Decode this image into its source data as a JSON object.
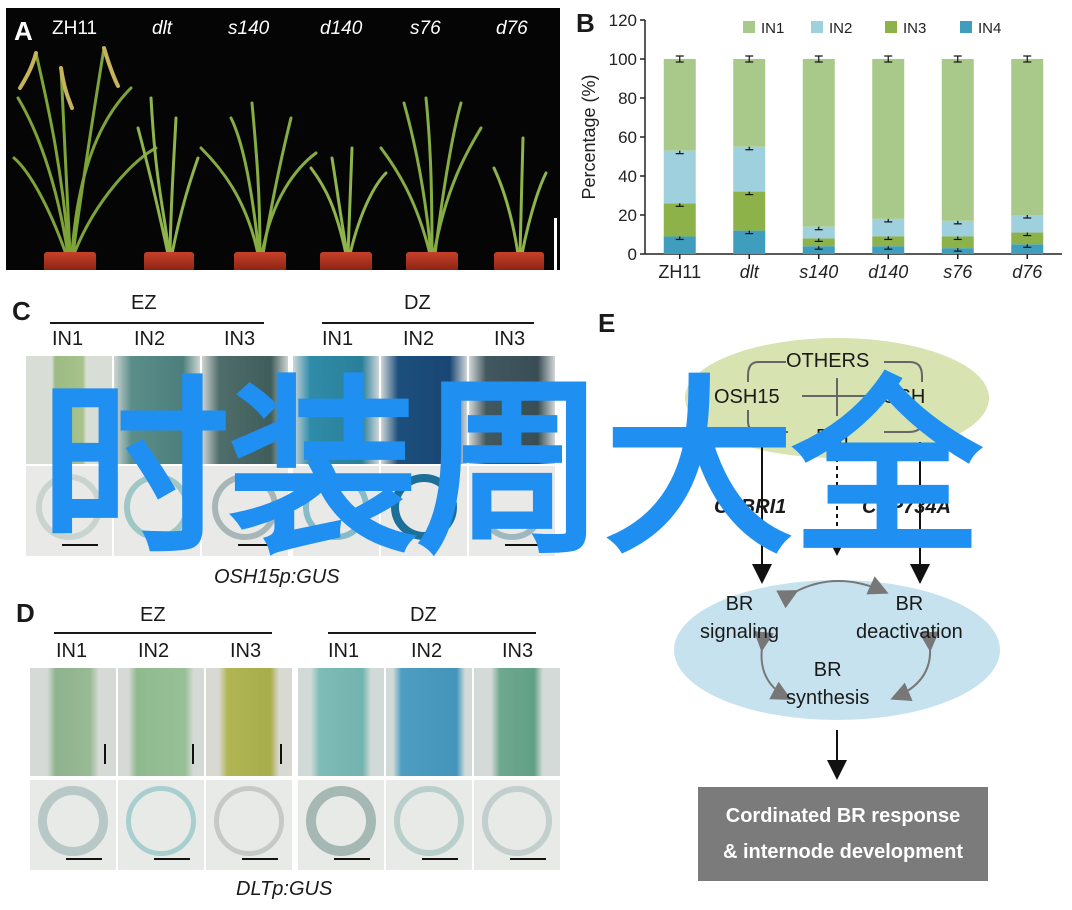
{
  "panels": {
    "a": {
      "letter": "A",
      "labels": [
        "ZH11",
        "dlt",
        "s140",
        "d140",
        "s76",
        "d76"
      ]
    },
    "b": {
      "letter": "B"
    },
    "c": {
      "letter": "C",
      "groups": [
        "EZ",
        "DZ"
      ],
      "columns": [
        "IN1",
        "IN2",
        "IN3",
        "IN1",
        "IN2",
        "IN3"
      ],
      "caption": "OSH15p:GUS"
    },
    "d": {
      "letter": "D",
      "groups": [
        "EZ",
        "DZ"
      ],
      "columns": [
        "IN1",
        "IN2",
        "IN3",
        "IN1",
        "IN2",
        "IN3"
      ],
      "caption": "DLTp:GUS"
    },
    "e": {
      "letter": "E",
      "others": "OTHERS",
      "osh15": "OSH15",
      "osh_right": "OSH",
      "dlt": "DLT",
      "left_gene": "OsBRI1",
      "right_gene": "CYP734A",
      "br_signaling_1": "BR",
      "br_signaling_2": "signaling",
      "br_deact_1": "BR",
      "br_deact_2": "deactivation",
      "br_synth_1": "BR",
      "br_synth_2": "synthesis",
      "response_1": "Cordinated BR response",
      "response_2": "& internode development"
    }
  },
  "watermark": "时装周大全",
  "colors": {
    "IN1": "#a9c98a",
    "IN2": "#9fd0dd",
    "IN3": "#8db24a",
    "IN4": "#3f9ebd"
  },
  "chart_data": {
    "type": "bar",
    "stacked": true,
    "categories": [
      "ZH11",
      "dlt",
      "s140",
      "d140",
      "s76",
      "d76"
    ],
    "italic_categories": [
      false,
      true,
      true,
      true,
      true,
      true
    ],
    "ylabel": "Percentage (%)",
    "ylim": [
      0,
      120
    ],
    "yticks": [
      0,
      20,
      40,
      60,
      80,
      100,
      120
    ],
    "legend": "top",
    "series": [
      {
        "name": "IN1",
        "values": [
          47,
          45,
          86,
          82,
          83,
          80
        ]
      },
      {
        "name": "IN2",
        "values": [
          27,
          23,
          6,
          9,
          8,
          9
        ]
      },
      {
        "name": "IN3",
        "values": [
          17,
          20,
          4,
          5,
          6,
          6
        ]
      },
      {
        "name": "IN4",
        "values": [
          9,
          12,
          4,
          4,
          3,
          5
        ]
      }
    ]
  }
}
